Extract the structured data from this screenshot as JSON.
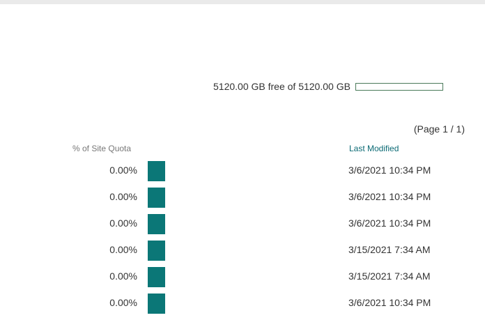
{
  "storage": {
    "summary_text": "5120.00 GB free of 5120.00 GB",
    "used_fraction": 0
  },
  "pager": {
    "label": "(Page 1 / 1)"
  },
  "table": {
    "headers": {
      "site_quota": "% of Site Quota",
      "last_modified": "Last Modified"
    },
    "rows": [
      {
        "site_quota": "0.00%",
        "last_modified": "3/6/2021 10:34 PM"
      },
      {
        "site_quota": "0.00%",
        "last_modified": "3/6/2021 10:34 PM"
      },
      {
        "site_quota": "0.00%",
        "last_modified": "3/6/2021 10:34 PM"
      },
      {
        "site_quota": "0.00%",
        "last_modified": "3/15/2021 7:34 AM"
      },
      {
        "site_quota": "0.00%",
        "last_modified": "3/15/2021 7:34 AM"
      },
      {
        "site_quota": "0.00%",
        "last_modified": "3/6/2021 10:34 PM"
      }
    ]
  },
  "colors": {
    "accent": "#0b6a74",
    "quota_swatch": "#0b7777",
    "storage_bar_border": "#4a7a5a"
  }
}
